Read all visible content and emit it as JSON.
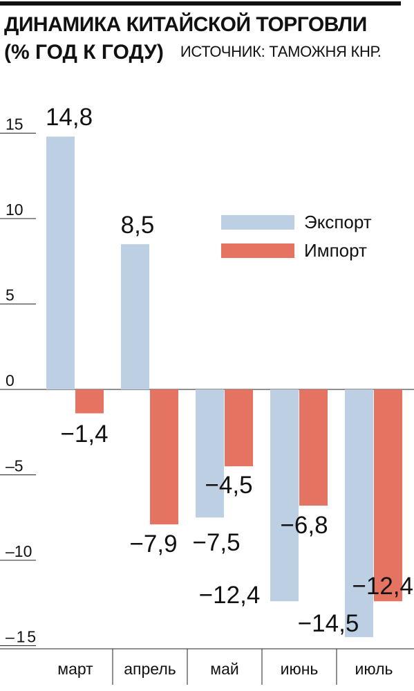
{
  "chart_data": {
    "type": "bar",
    "title": "ДИНАМИКА КИТАЙСКОЙ ТОРГОВЛИ",
    "subtitle": "(% ГОД К ГОДУ)",
    "source": "ИСТОЧНИК: ТАМОЖНЯ КНР.",
    "categories": [
      "март",
      "апрель",
      "май",
      "июнь",
      "июль"
    ],
    "series": [
      {
        "name": "Экспорт",
        "values": [
          14.8,
          8.5,
          -7.5,
          -12.4,
          -14.5
        ],
        "labels": [
          "14,8",
          "8,5",
          "−7,5",
          "−12,4",
          "−14,5"
        ],
        "color": "#bdd0e3"
      },
      {
        "name": "Импорт",
        "values": [
          -1.4,
          -7.9,
          -4.5,
          -6.8,
          -12.4
        ],
        "labels": [
          "−1,4",
          "−7,9",
          "−4,5",
          "−6,8",
          "−12,4"
        ],
        "color": "#e57362"
      }
    ],
    "yticks": [
      15,
      10,
      5,
      0,
      -5,
      -10,
      -15
    ],
    "ytick_labels": [
      "15",
      "10",
      "5",
      "0",
      "–5",
      "–10",
      "–15"
    ],
    "ylim": [
      -15.5,
      15
    ],
    "grid": false,
    "legend_position": "top-right"
  }
}
